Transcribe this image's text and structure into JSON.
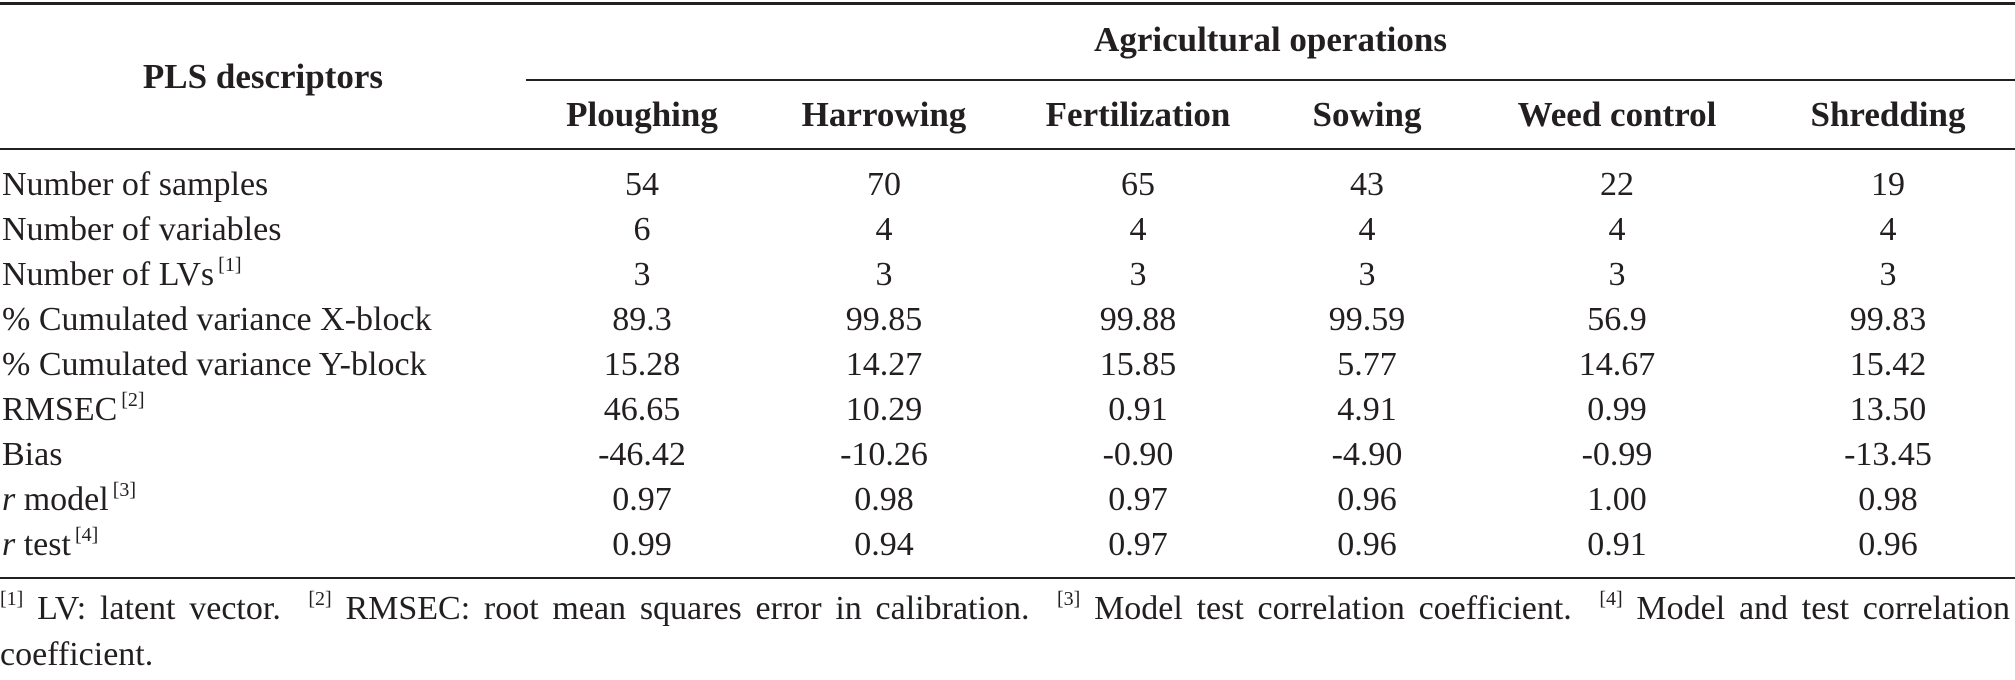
{
  "header": {
    "pls_descriptors": "PLS descriptors",
    "agricultural_operations": "Agricultural operations",
    "columns": [
      "Ploughing",
      "Harrowing",
      "Fertilization",
      "Sowing",
      "Weed control",
      "Shredding"
    ]
  },
  "rows": [
    {
      "label": "Number of samples",
      "ref": "",
      "values": [
        "54",
        "70",
        "65",
        "43",
        "22",
        "19"
      ]
    },
    {
      "label": "Number of variables",
      "ref": "",
      "values": [
        "6",
        "4",
        "4",
        "4",
        "4",
        "4"
      ]
    },
    {
      "label": "Number of LVs",
      "ref": "[1]",
      "values": [
        "3",
        "3",
        "3",
        "3",
        "3",
        "3"
      ]
    },
    {
      "label": "% Cumulated variance X-block",
      "ref": "",
      "values": [
        "89.3",
        "99.85",
        "99.88",
        "99.59",
        "56.9",
        "99.83"
      ]
    },
    {
      "label": "% Cumulated variance Y-block",
      "ref": "",
      "values": [
        "15.28",
        "14.27",
        "15.85",
        "5.77",
        "14.67",
        "15.42"
      ]
    },
    {
      "label": "RMSEC",
      "ref": "[2]",
      "values": [
        "46.65",
        "10.29",
        "0.91",
        "4.91",
        "0.99",
        "13.50"
      ]
    },
    {
      "label": "Bias",
      "ref": "",
      "values": [
        "-46.42",
        "-10.26",
        "-0.90",
        "-4.90",
        "-0.99",
        "-13.45"
      ]
    },
    {
      "label_italic": "r",
      "label": "model",
      "ref": "[3]",
      "values": [
        "0.97",
        "0.98",
        "0.97",
        "0.96",
        "1.00",
        "0.98"
      ]
    },
    {
      "label_italic": "r",
      "label": "test",
      "ref": "[4]",
      "values": [
        "0.99",
        "0.94",
        "0.97",
        "0.96",
        "0.91",
        "0.96"
      ]
    }
  ],
  "footnotes": [
    {
      "ref": "[1]",
      "text": "LV: latent vector."
    },
    {
      "ref": "[2]",
      "text": "RMSEC: root mean squares error in calibration."
    },
    {
      "ref": "[3]",
      "text": "Model test correlation coefficient."
    },
    {
      "ref": "[4]",
      "text": "Model and test correlation coefficient."
    }
  ]
}
